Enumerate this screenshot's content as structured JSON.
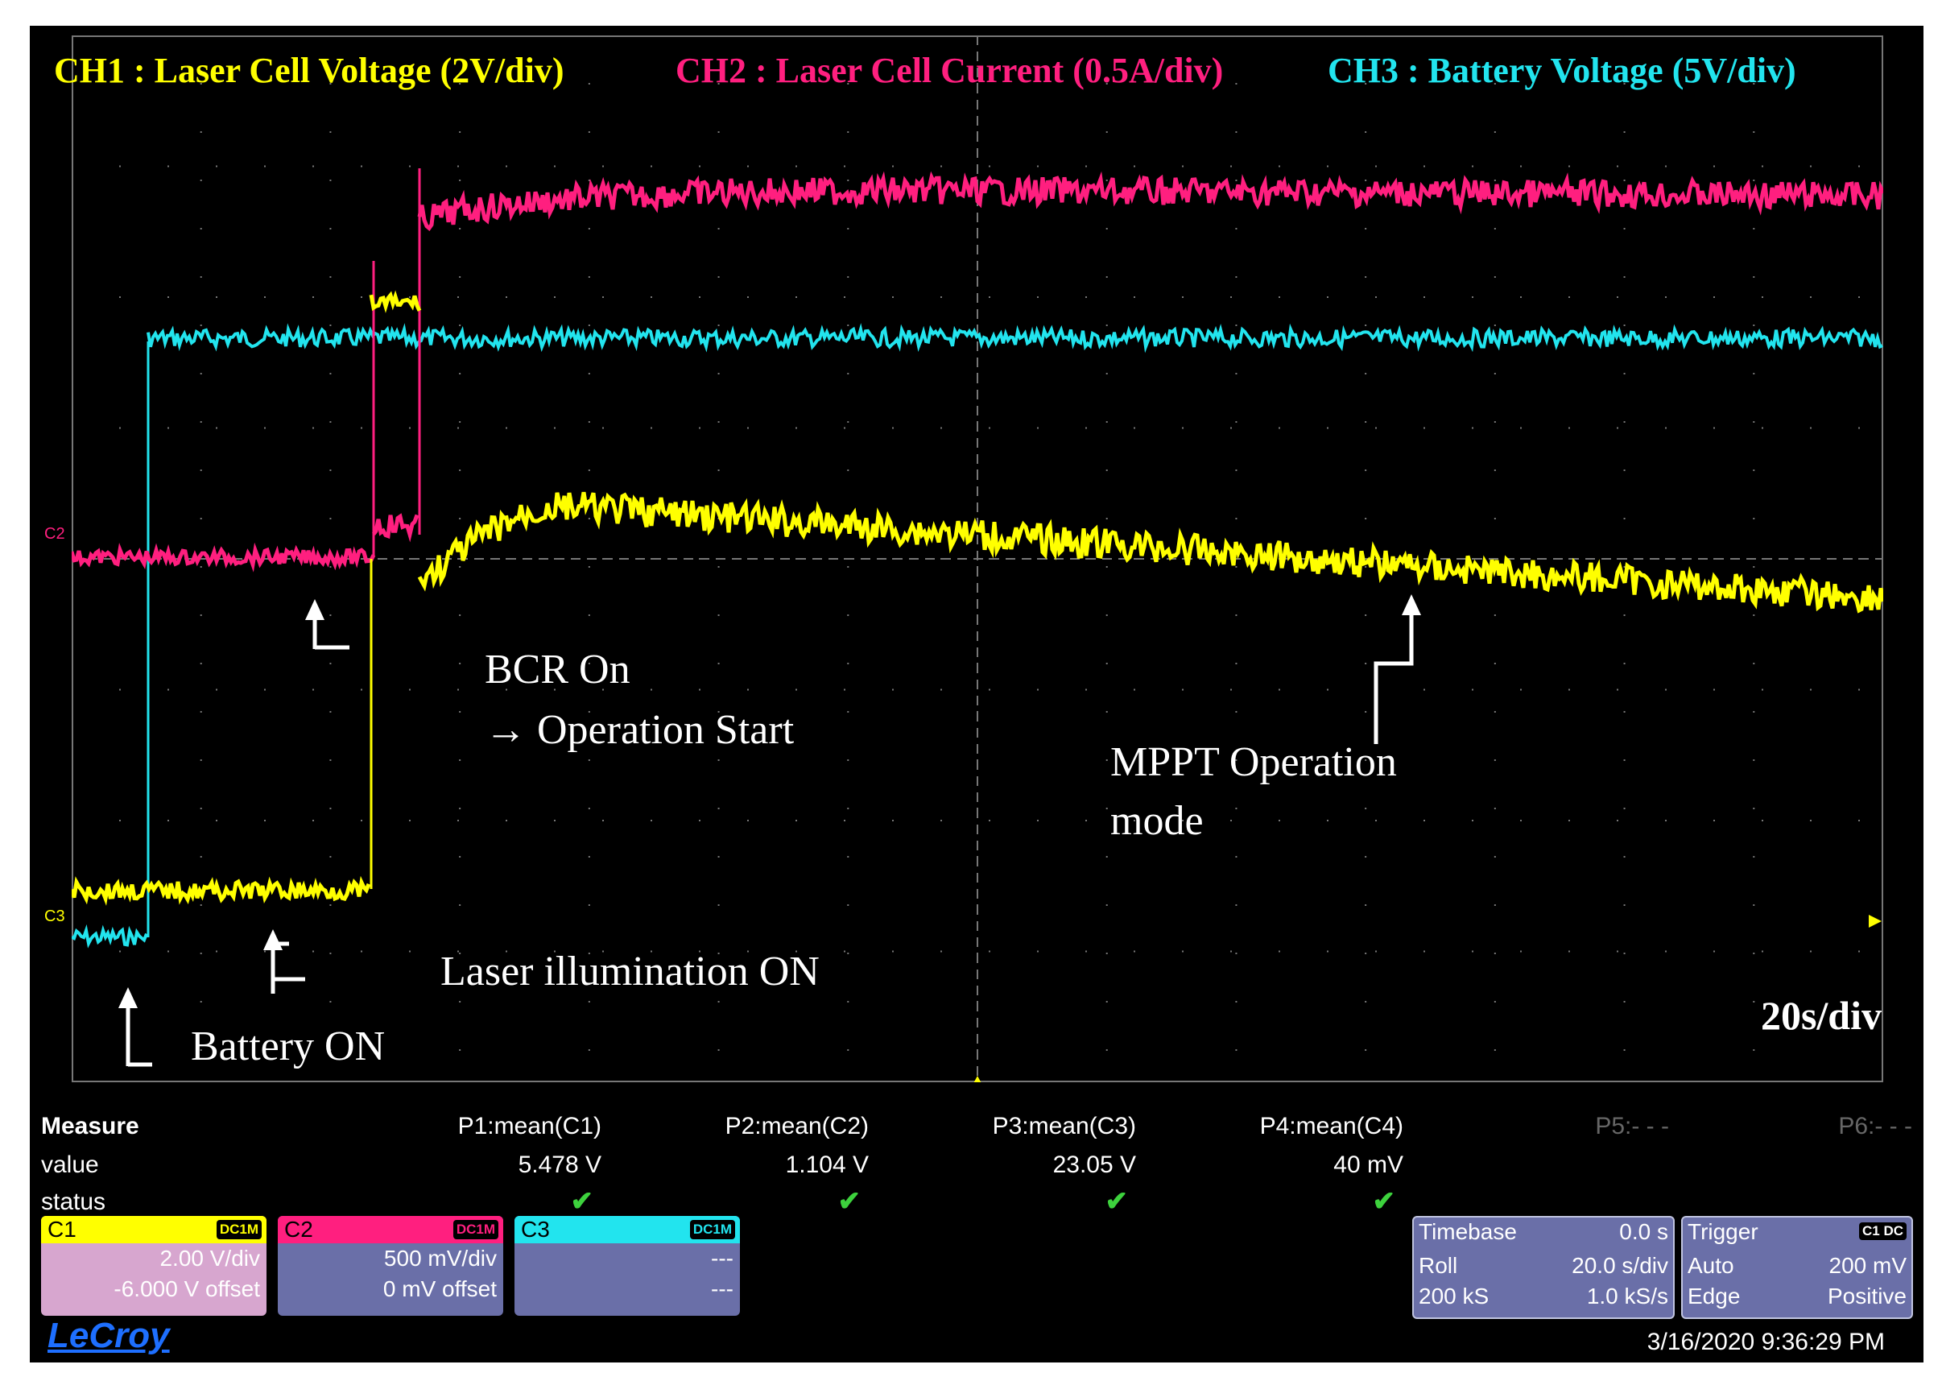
{
  "scope": {
    "channels": [
      {
        "id": "ch1",
        "title": "CH1 : Laser Cell Voltage (2V/div)",
        "color": "#ffff00"
      },
      {
        "id": "ch2",
        "title": "CH2 : Laser Cell Current (0.5A/div)",
        "color": "#ff1f7f"
      },
      {
        "id": "ch3",
        "title": "CH3 : Battery Voltage (5V/div)",
        "color": "#22e4ee"
      }
    ],
    "channel_markers": {
      "c2": "C2",
      "c3": "C3"
    },
    "timebase_label": "20s/div",
    "grid_color": "#777777"
  },
  "annotations": {
    "bcr_line1": "BCR On",
    "bcr_line2": "→ Operation  Start",
    "mppt_line1": "MPPT Operation",
    "mppt_line2": "mode",
    "laser_on": "Laser illumination  ON",
    "battery_on": "Battery  ON"
  },
  "measure": {
    "title": "Measure",
    "row_value": "value",
    "row_status": "status",
    "params": [
      {
        "name": "P1:mean(C1)",
        "value": "5.478 V",
        "ok": true
      },
      {
        "name": "P2:mean(C2)",
        "value": "1.104 V",
        "ok": true
      },
      {
        "name": "P3:mean(C3)",
        "value": "23.05 V",
        "ok": true
      },
      {
        "name": "P4:mean(C4)",
        "value": "40 mV",
        "ok": true
      },
      {
        "name": "P5:- - -",
        "value": "",
        "ok": false
      },
      {
        "name": "P6:- - -",
        "value": "",
        "ok": false
      }
    ],
    "check_glyph": "✔"
  },
  "channel_boxes": [
    {
      "label": "C1",
      "badge": "DC1M",
      "line1": "2.00 V/div",
      "line2": "-6.000 V offset",
      "head": "#ffff00",
      "body": "#d7a6cf",
      "text": "#000000"
    },
    {
      "label": "C2",
      "badge": "DC1M",
      "line1": "500 mV/div",
      "line2": "0 mV offset",
      "head": "#ff1f7f",
      "body": "#6a6fa8",
      "text": "#ffffff"
    },
    {
      "label": "C3",
      "badge": "DC1M",
      "line1": "---",
      "line2": "---",
      "head": "#22e4ee",
      "body": "#6a6fa8",
      "text": "#ffffff"
    }
  ],
  "timebase": {
    "title": "Timebase",
    "offset": "0.0 s",
    "mode": "Roll",
    "rate": "20.0 s/div",
    "samples": "200 kS",
    "sample_rate": "1.0 kS/s"
  },
  "trigger": {
    "title": "Trigger",
    "badge": "C1 DC",
    "mode": "Auto",
    "level": "200 mV",
    "type": "Edge",
    "slope": "Positive"
  },
  "brand": "LeCroy",
  "timestamp": "3/16/2020 9:36:29 PM"
}
